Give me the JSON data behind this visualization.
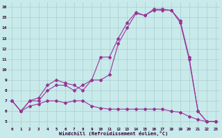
{
  "xlabel": "Windchill (Refroidissement éolien,°C)",
  "bg_color": "#c8eaea",
  "line_color": "#993399",
  "grid_color": "#aacccc",
  "xlim": [
    -0.5,
    23.5
  ],
  "ylim": [
    4.5,
    16.5
  ],
  "xticks": [
    0,
    1,
    2,
    3,
    4,
    5,
    6,
    7,
    8,
    9,
    10,
    11,
    12,
    13,
    14,
    15,
    16,
    17,
    18,
    19,
    20,
    21,
    22,
    23
  ],
  "yticks": [
    5,
    6,
    7,
    8,
    9,
    10,
    11,
    12,
    13,
    14,
    15,
    16
  ],
  "line1_x": [
    0,
    1,
    2,
    3,
    4,
    5,
    6,
    7,
    8,
    9,
    10,
    11,
    12,
    13,
    14,
    15,
    16,
    17,
    18,
    19,
    20,
    21,
    22,
    23
  ],
  "line1_y": [
    7.0,
    6.0,
    7.0,
    7.3,
    8.5,
    9.0,
    8.7,
    8.5,
    8.0,
    9.0,
    11.2,
    11.2,
    13.0,
    14.5,
    15.5,
    15.2,
    15.8,
    15.8,
    15.7,
    14.7,
    11.2,
    6.0,
    5.0,
    5.0
  ],
  "line2_x": [
    0,
    1,
    2,
    3,
    4,
    5,
    6,
    7,
    8,
    9,
    10,
    11,
    12,
    13,
    14,
    15,
    16,
    17,
    18,
    19,
    20,
    21,
    22,
    23
  ],
  "line2_y": [
    7.0,
    6.0,
    7.0,
    7.0,
    8.0,
    8.5,
    8.5,
    8.0,
    8.5,
    9.0,
    9.0,
    9.5,
    12.5,
    14.0,
    15.4,
    15.2,
    15.7,
    15.7,
    15.7,
    14.5,
    11.0,
    6.0,
    5.0,
    5.0
  ],
  "line3_x": [
    0,
    1,
    2,
    3,
    4,
    5,
    6,
    7,
    8,
    9,
    10,
    11,
    12,
    13,
    14,
    15,
    16,
    17,
    18,
    19,
    20,
    21,
    22,
    23
  ],
  "line3_y": [
    7.0,
    6.0,
    6.5,
    6.7,
    7.0,
    7.0,
    6.8,
    7.0,
    7.0,
    6.5,
    6.3,
    6.2,
    6.2,
    6.2,
    6.2,
    6.2,
    6.2,
    6.2,
    6.0,
    5.9,
    5.5,
    5.2,
    5.0,
    5.0
  ]
}
